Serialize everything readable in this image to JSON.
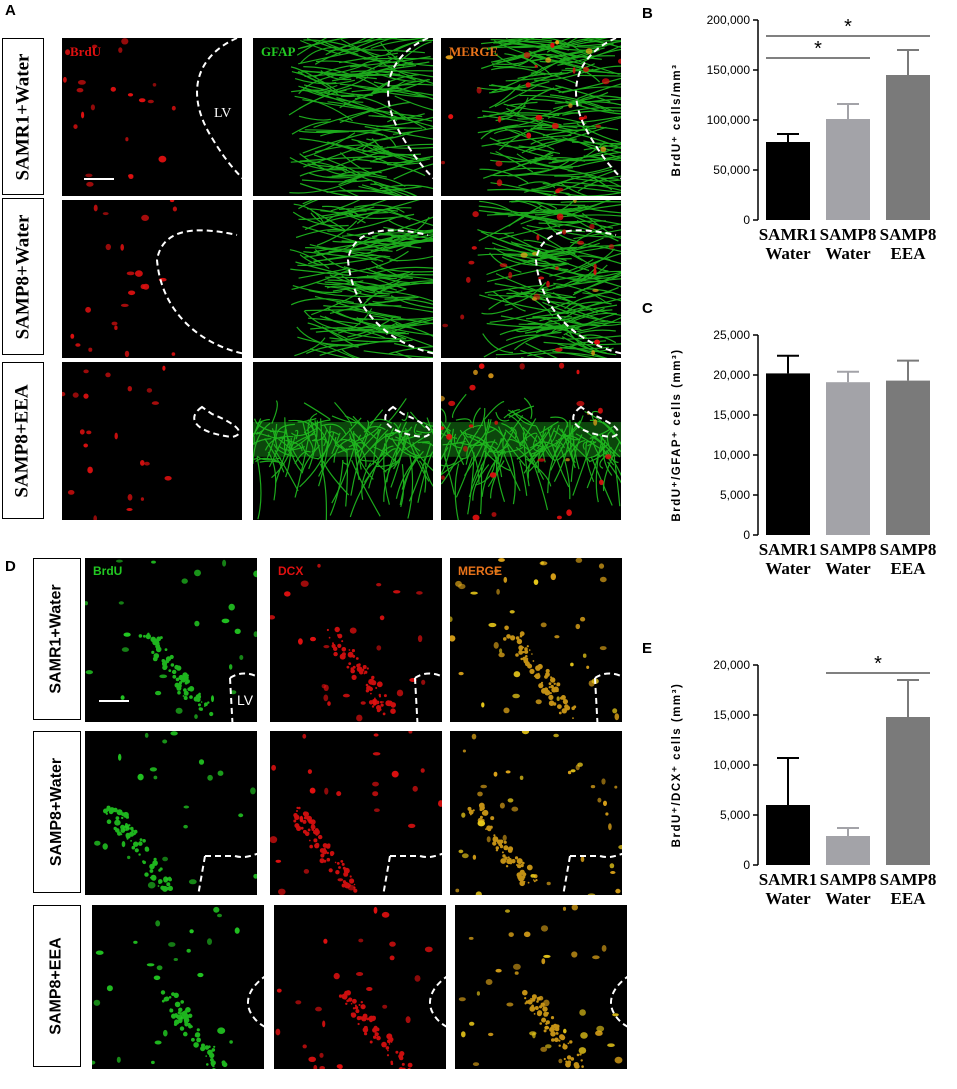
{
  "panel_labels": {
    "A": "A",
    "B": "B",
    "C": "C",
    "D": "D",
    "E": "E"
  },
  "panelA": {
    "rows": [
      "SAMR1+Water",
      "SAMP8+Water",
      "SAMP8+EEA"
    ],
    "channels": [
      "BrdU",
      "GFAP",
      "MERGE"
    ],
    "channel_colors": [
      "#e01010",
      "#22c822",
      "#e8731a"
    ],
    "lv_label": "LV"
  },
  "panelD": {
    "rows": [
      "SAMR1+Water",
      "SAMP8+Water",
      "SAMP8+EEA"
    ],
    "channels": [
      "BrdU",
      "DCX",
      "MERGE"
    ],
    "channel_colors": [
      "#22c822",
      "#e01010",
      "#e8731a"
    ],
    "lv_label": "LV"
  },
  "chart_data": [
    {
      "panel": "B",
      "type": "bar",
      "categories": [
        [
          "SAMR1",
          "Water"
        ],
        [
          "SAMP8",
          "Water"
        ],
        [
          "SAMP8",
          "EEA"
        ]
      ],
      "values": [
        78000,
        101000,
        145000
      ],
      "errors": [
        8000,
        15000,
        25000
      ],
      "colors": [
        "#000000",
        "#a3a3a8",
        "#7a7a7a"
      ],
      "ylabel": "BrdU⁺ cells/mm³",
      "ylim": [
        0,
        200000
      ],
      "yticks": [
        "0",
        "50,000",
        "100,000",
        "150,000",
        "200,000"
      ],
      "significance": [
        {
          "from": 1,
          "to": 2,
          "label": "*",
          "y": 184000
        },
        {
          "from": 0,
          "to": 1,
          "label": "*",
          "y": 162000
        }
      ]
    },
    {
      "panel": "C",
      "type": "bar",
      "categories": [
        [
          "SAMR1",
          "Water"
        ],
        [
          "SAMP8",
          "Water"
        ],
        [
          "SAMP8",
          "EEA"
        ]
      ],
      "values": [
        20200,
        19100,
        19300
      ],
      "errors": [
        2200,
        1300,
        2500
      ],
      "colors": [
        "#000000",
        "#a3a3a8",
        "#7a7a7a"
      ],
      "ylabel": "BrdU⁺/GFAP⁺ cells (mm³)",
      "ylim": [
        0,
        25000
      ],
      "yticks": [
        "0",
        "5,000",
        "10,000",
        "15,000",
        "20,000",
        "25,000"
      ],
      "significance": []
    },
    {
      "panel": "E",
      "type": "bar",
      "categories": [
        [
          "SAMR1",
          "Water"
        ],
        [
          "SAMP8",
          "Water"
        ],
        [
          "SAMP8",
          "EEA"
        ]
      ],
      "values": [
        6000,
        2900,
        14800
      ],
      "errors": [
        4700,
        800,
        3700
      ],
      "colors": [
        "#000000",
        "#a3a3a8",
        "#7a7a7a"
      ],
      "ylabel": "BrdU⁺/DCX⁺ cells (mm³)",
      "ylim": [
        0,
        20000
      ],
      "yticks": [
        "0",
        "5,000",
        "10,000",
        "15,000",
        "20,000"
      ],
      "significance": [
        {
          "from": 1,
          "to": 2,
          "label": "*",
          "y": 19200
        }
      ]
    }
  ]
}
